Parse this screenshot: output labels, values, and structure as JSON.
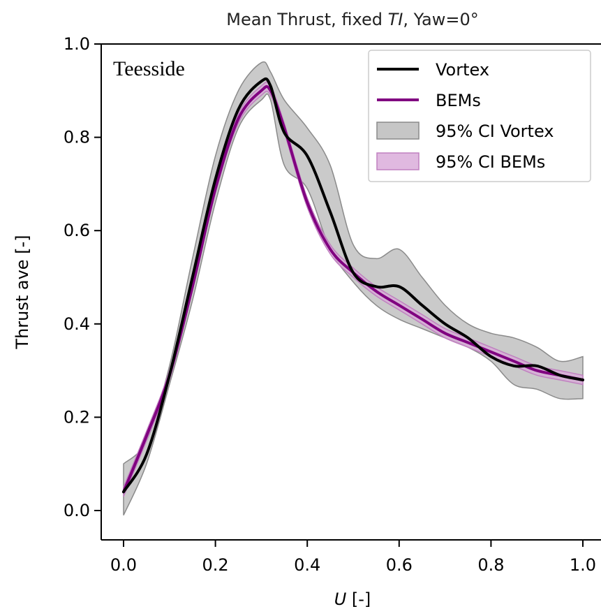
{
  "chart_data": {
    "type": "line",
    "title_pre": "Mean Thrust, fixed ",
    "title_italic": "TI",
    "title_post": ", Yaw=0°",
    "annotation": "Teesside",
    "xlabel_italic": "U",
    "xlabel_rest": " [-]",
    "ylabel": "Thrust ave [-]",
    "xlim": [
      -0.05,
      1.0
    ],
    "ylim": [
      -0.06,
      1.0
    ],
    "xticks": [
      0.0,
      0.2,
      0.4,
      0.6,
      0.8,
      1.0
    ],
    "xtick_labels": [
      "0.0",
      "0.2",
      "0.4",
      "0.6",
      "0.8",
      "1.0"
    ],
    "yticks": [
      0.0,
      0.2,
      0.4,
      0.6,
      0.8,
      1.0
    ],
    "ytick_labels": [
      "0.0",
      "0.2",
      "0.4",
      "0.6",
      "0.8",
      "1.0"
    ],
    "grid": false,
    "legend_position": "top-right",
    "x": [
      0.0,
      0.05,
      0.1,
      0.15,
      0.2,
      0.25,
      0.3,
      0.32,
      0.35,
      0.4,
      0.45,
      0.5,
      0.55,
      0.6,
      0.65,
      0.7,
      0.75,
      0.8,
      0.85,
      0.9,
      0.95,
      1.0
    ],
    "series": [
      {
        "name": "Vortex",
        "color": "#000000",
        "values": [
          0.04,
          0.12,
          0.29,
          0.5,
          0.71,
          0.86,
          0.92,
          0.91,
          0.81,
          0.76,
          0.64,
          0.51,
          0.48,
          0.48,
          0.44,
          0.4,
          0.37,
          0.33,
          0.31,
          0.31,
          0.29,
          0.28
        ]
      },
      {
        "name": "BEMs",
        "color": "#800080",
        "values": [
          0.04,
          0.16,
          0.29,
          0.48,
          0.69,
          0.84,
          0.9,
          0.9,
          0.82,
          0.66,
          0.56,
          0.51,
          0.47,
          0.44,
          0.41,
          0.38,
          0.36,
          0.34,
          0.32,
          0.3,
          0.29,
          0.28
        ]
      }
    ],
    "bands": [
      {
        "name": "95% CI Vortex",
        "fill": "#b8b8b8",
        "stroke": "#8a8a8a",
        "lower": [
          -0.01,
          0.1,
          0.27,
          0.45,
          0.66,
          0.82,
          0.88,
          0.88,
          0.74,
          0.69,
          0.56,
          0.49,
          0.44,
          0.41,
          0.39,
          0.37,
          0.35,
          0.32,
          0.27,
          0.26,
          0.24,
          0.24
        ],
        "upper": [
          0.1,
          0.15,
          0.31,
          0.54,
          0.76,
          0.9,
          0.96,
          0.94,
          0.88,
          0.82,
          0.74,
          0.57,
          0.54,
          0.56,
          0.5,
          0.44,
          0.4,
          0.38,
          0.37,
          0.35,
          0.32,
          0.33
        ]
      },
      {
        "name": "95% CI BEMs",
        "fill": "#d8a8d8",
        "stroke": "#c080c0",
        "lower": [
          0.03,
          0.15,
          0.28,
          0.47,
          0.68,
          0.83,
          0.89,
          0.89,
          0.81,
          0.65,
          0.55,
          0.5,
          0.46,
          0.43,
          0.4,
          0.37,
          0.35,
          0.33,
          0.31,
          0.29,
          0.28,
          0.27
        ],
        "upper": [
          0.05,
          0.17,
          0.3,
          0.49,
          0.7,
          0.85,
          0.91,
          0.91,
          0.83,
          0.67,
          0.57,
          0.52,
          0.48,
          0.45,
          0.42,
          0.39,
          0.37,
          0.35,
          0.33,
          0.31,
          0.3,
          0.29
        ]
      }
    ]
  }
}
